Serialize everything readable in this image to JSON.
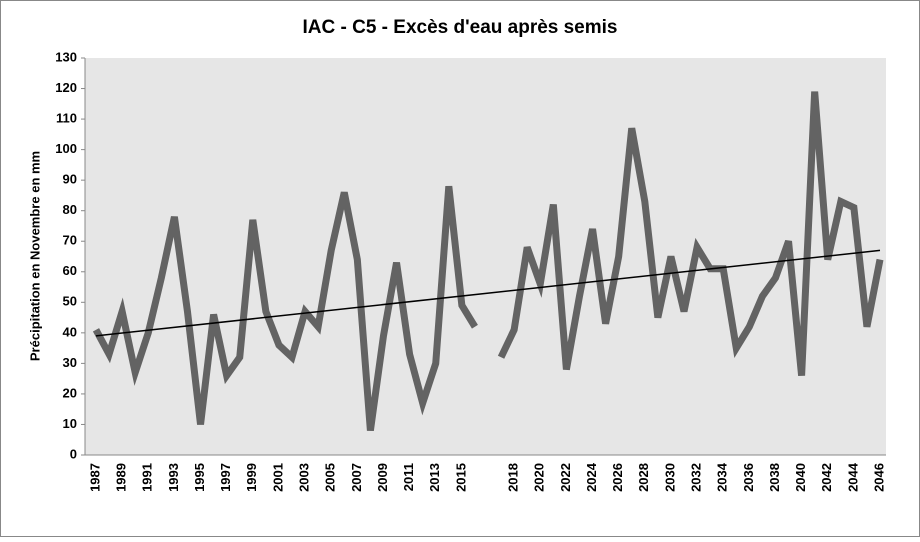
{
  "chart_data": {
    "type": "line",
    "title": "IAC - C5 - Excès d'eau après semis",
    "y_label": "Précipitation en Novembre en mm",
    "categories": [
      "1987",
      null,
      "1989",
      null,
      "1991",
      null,
      "1993",
      null,
      "1995",
      null,
      "1997",
      null,
      "1999",
      null,
      "2001",
      null,
      "2003",
      null,
      "2005",
      null,
      "2007",
      null,
      "2009",
      null,
      "2011",
      null,
      "2013",
      null,
      "2015",
      null,
      null,
      null,
      "2018",
      null,
      "2020",
      null,
      "2022",
      null,
      "2024",
      null,
      "2026",
      null,
      "2028",
      null,
      "2030",
      null,
      "2032",
      null,
      "2034",
      null,
      "2036",
      null,
      "2038",
      null,
      "2040",
      null,
      "2042",
      null,
      "2044",
      null,
      "2046"
    ],
    "series": [
      {
        "color": "#636363",
        "values": [
          41,
          33,
          47,
          27,
          40,
          58,
          78,
          47,
          10,
          46,
          26,
          32,
          77,
          47,
          36,
          32,
          47,
          42,
          67,
          86,
          64,
          8,
          39,
          63,
          33,
          17,
          30,
          88,
          49,
          42,
          null,
          32,
          41,
          68,
          56,
          82,
          28,
          52,
          74,
          43,
          65,
          107,
          83,
          45,
          65,
          47,
          68,
          61,
          61,
          35,
          42,
          52,
          58,
          70,
          26,
          119,
          64,
          83,
          81,
          42,
          64
        ]
      }
    ],
    "trendline": {
      "color": "#000000",
      "values": [
        39,
        67
      ]
    },
    "ylim": [
      0,
      130
    ],
    "yticks": [
      0,
      10,
      20,
      30,
      40,
      50,
      60,
      70,
      80,
      90,
      100,
      110,
      120,
      130
    ],
    "grid": false,
    "plot_background": "#e6e6e6"
  }
}
